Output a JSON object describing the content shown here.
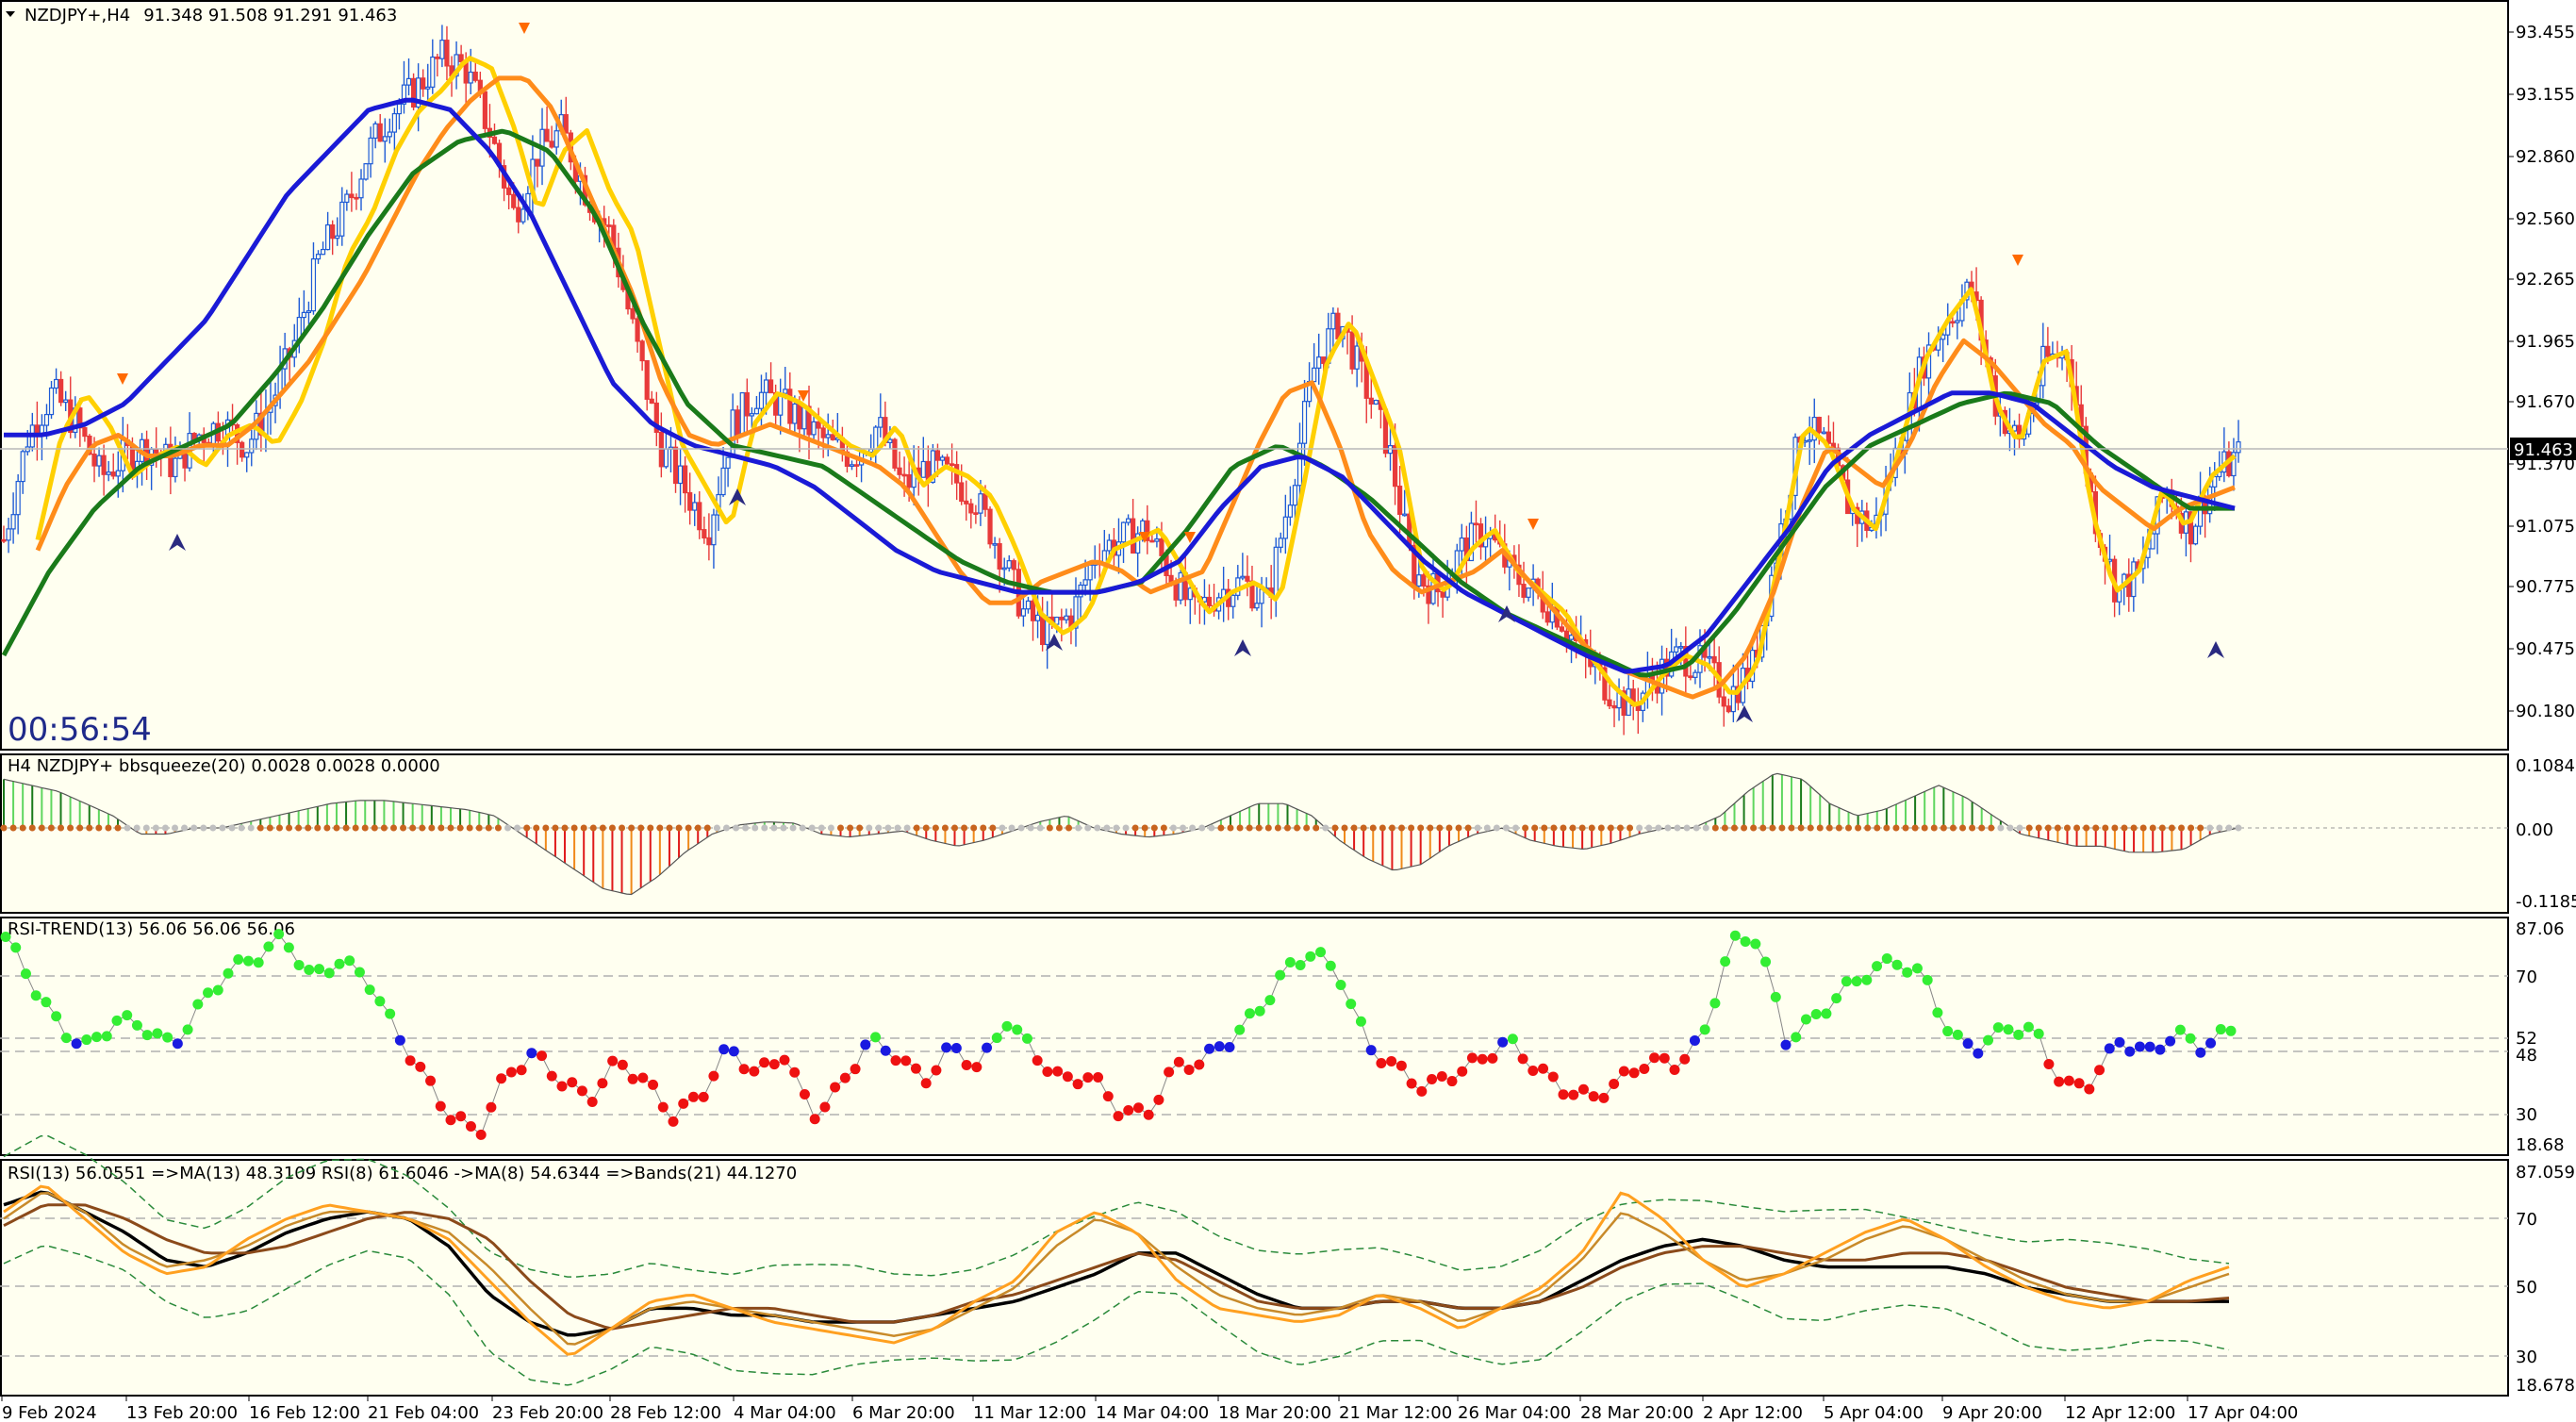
{
  "window": {
    "title_symbol": "NZDJPY+,H4",
    "ohlc": "91.348 91.508 91.291 91.463",
    "countdown": "00:56:54"
  },
  "price_axis": {
    "labels": [
      "93.455",
      "93.155",
      "92.860",
      "92.560",
      "92.265",
      "91.965",
      "91.670",
      "91.370",
      "91.075",
      "90.775",
      "90.475",
      "90.180"
    ],
    "current_price": "91.463"
  },
  "time_axis": {
    "labels": [
      "9 Feb 2024",
      "13 Feb 20:00",
      "16 Feb 12:00",
      "21 Feb 04:00",
      "23 Feb 20:00",
      "28 Feb 12:00",
      "4 Mar 04:00",
      "6 Mar 20:00",
      "11 Mar 12:00",
      "14 Mar 04:00",
      "18 Mar 20:00",
      "21 Mar 12:00",
      "26 Mar 04:00",
      "28 Mar 20:00",
      "2 Apr 12:00",
      "5 Apr 04:00",
      "9 Apr 20:00",
      "12 Apr 12:00",
      "17 Apr 04:00"
    ]
  },
  "panels": {
    "bbsqueeze": {
      "header": "H4 NZDJPY+ bbsqueeze(20) 0.0028 0.0028 0.0000",
      "axis": [
        "0.1084",
        "0.00",
        "-0.1185"
      ]
    },
    "rsi_trend": {
      "header": "RSI-TREND(13) 56.06 56.06 56.06",
      "axis": [
        "87.06",
        "70",
        "52",
        "48",
        "30",
        "18.68"
      ]
    },
    "rsi_bands": {
      "header": "RSI(13) 56.0551  =>MA(13) 48.3109  RSI(8) 61.6046  ->MA(8) 54.6344  =>Bands(21) 44.1270",
      "axis": [
        "87.059",
        "70",
        "50",
        "30",
        "18.678"
      ]
    }
  },
  "colors": {
    "background": "#fffff0",
    "bull_candle": "#1e5bd6",
    "bear_candle": "#e83a3a",
    "ma_fast": "#ffd000",
    "ma_mid": "#1a7a1a",
    "ma_slow_orange": "#ff8c1a",
    "ma_slow_blue": "#1a1ad6"
  },
  "chart_data": {
    "type": "line",
    "main_price_range": [
      90.05,
      93.6
    ],
    "main_series": [
      {
        "values": [
          91.05,
          91.55,
          91.75,
          91.6,
          91.35,
          91.45,
          91.5,
          91.4,
          91.55,
          91.6,
          91.5,
          91.7,
          92.0,
          92.4,
          92.6,
          92.9,
          93.1,
          93.2,
          93.35,
          93.3,
          93.0,
          92.6,
          92.9,
          93.0,
          92.7,
          92.5,
          92.0,
          91.5,
          91.3,
          91.1,
          91.6,
          91.75,
          91.7,
          91.6,
          91.5,
          91.45,
          91.6,
          91.3,
          91.4,
          91.35,
          91.25,
          91.0,
          90.7,
          90.6,
          90.7,
          91.0,
          91.05,
          91.1,
          90.9,
          90.7,
          90.8,
          90.85,
          90.75,
          91.3,
          91.9,
          92.1,
          91.8,
          91.5,
          90.9,
          90.8,
          91.0,
          91.1,
          90.9,
          90.8,
          90.7,
          90.5,
          90.35,
          90.25,
          90.4,
          90.5,
          90.45,
          90.3,
          90.45,
          91.0,
          91.6,
          91.5,
          91.2,
          91.1,
          91.5,
          91.9,
          92.1,
          92.25,
          91.7,
          91.5,
          91.9,
          91.95,
          91.2,
          90.8,
          90.9,
          91.3,
          91.1,
          91.35,
          91.45
        ]
      },
      {
        "values": [
          91.0,
          91.3,
          91.5,
          91.55,
          91.45,
          91.45,
          91.5,
          91.5,
          91.6,
          91.75,
          91.9,
          92.1,
          92.3,
          92.55,
          92.8,
          93.0,
          93.15,
          93.25,
          93.25,
          93.1,
          92.8,
          92.5,
          92.2,
          91.8,
          91.55,
          91.5,
          91.55,
          91.6,
          91.55,
          91.5,
          91.45,
          91.4,
          91.3,
          91.1,
          90.9,
          90.75,
          90.75,
          90.85,
          90.9,
          90.95,
          90.9,
          90.8,
          90.85,
          90.9,
          91.2,
          91.5,
          91.75,
          91.8,
          91.5,
          91.1,
          90.9,
          90.8,
          90.85,
          90.9,
          91.0,
          90.85,
          90.7,
          90.55,
          90.45,
          90.4,
          90.35,
          90.3,
          90.35,
          90.5,
          90.8,
          91.2,
          91.5,
          91.4,
          91.3,
          91.5,
          91.8,
          92.0,
          91.9,
          91.75,
          91.6,
          91.5,
          91.3,
          91.2,
          91.1,
          91.2,
          91.25,
          91.3
        ]
      },
      {
        "name": "",
        "values": [
          91.55,
          91.55,
          91.6,
          91.7,
          91.9,
          92.1,
          92.4,
          92.7,
          92.9,
          93.1,
          93.15,
          93.1,
          92.9,
          92.6,
          92.2,
          91.8,
          91.6,
          91.5,
          91.45,
          91.4,
          91.3,
          91.15,
          91.0,
          90.9,
          90.85,
          90.8,
          90.8,
          90.8,
          90.85,
          90.95,
          91.2,
          91.4,
          91.45,
          91.35,
          91.15,
          90.95,
          90.8,
          90.7,
          90.6,
          90.5,
          90.42,
          90.45,
          90.6,
          90.85,
          91.1,
          91.4,
          91.55,
          91.65,
          91.75,
          91.75,
          91.7,
          91.55,
          91.4,
          91.3,
          91.25,
          91.2
        ]
      },
      {
        "values": [
          90.5,
          90.9,
          91.2,
          91.4,
          91.5,
          91.6,
          91.85,
          92.15,
          92.5,
          92.8,
          92.95,
          93.0,
          92.9,
          92.6,
          92.1,
          91.7,
          91.5,
          91.45,
          91.4,
          91.25,
          91.1,
          90.95,
          90.85,
          90.8,
          90.8,
          90.85,
          91.1,
          91.4,
          91.5,
          91.4,
          91.25,
          91.05,
          90.85,
          90.7,
          90.6,
          90.5,
          90.4,
          90.45,
          90.7,
          91.0,
          91.3,
          91.5,
          91.6,
          91.7,
          91.75,
          91.7,
          91.5,
          91.35,
          91.2,
          91.2
        ]
      }
    ],
    "bbsqueeze_range": [
      -0.1185,
      0.1084
    ],
    "rsi_trend_range": [
      18.68,
      87.06
    ],
    "rsi_range": [
      18.678,
      87.059
    ]
  }
}
